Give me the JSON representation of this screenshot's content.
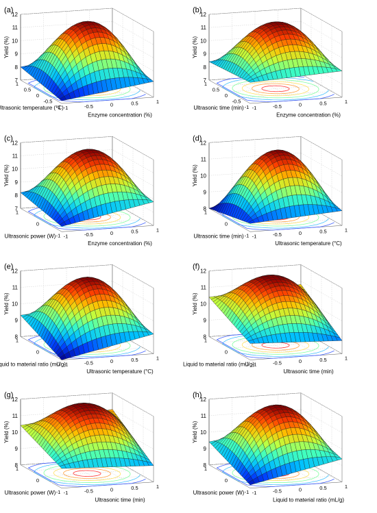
{
  "figure": {
    "colormap": [
      "#00008f",
      "#0040ff",
      "#00bfff",
      "#40ffbf",
      "#bfff40",
      "#ffbf00",
      "#ff4000",
      "#8f0000"
    ]
  },
  "chart_data": [
    {
      "type": "surface3d",
      "panel_label": "(a)",
      "zlabel": "Yield (%)",
      "zticks": [
        "7",
        "8",
        "9",
        "10",
        "11",
        "12"
      ],
      "xlabel": "Enzyme concentration (%)",
      "xticks": [
        "-1",
        "-0.5",
        "0",
        "0.5",
        "1"
      ],
      "ylabel": "Ultrasonic  temperature (°C)",
      "yticks": [
        "1",
        "0.5",
        "0",
        "-0.5",
        "-1"
      ],
      "xlim": [
        -1,
        1
      ],
      "ylim": [
        -1,
        1
      ],
      "zlim": [
        7,
        12
      ],
      "corner_values": {
        "near": 7.2,
        "left": 8.0,
        "right": 8.2,
        "back": 8.9
      },
      "peak": 12.0
    },
    {
      "type": "surface3d",
      "panel_label": "(b)",
      "zlabel": "Yield (%)",
      "zticks": [
        "7",
        "8",
        "9",
        "10",
        "11",
        "12"
      ],
      "xlabel": "Enzyme concentration (%)",
      "xticks": [
        "-1",
        "-0.5",
        "0",
        "0.5",
        "1"
      ],
      "ylabel": "Ultrasonic  time (min)",
      "yticks": [
        "1",
        "0.5",
        "0",
        "-0.5",
        "-1"
      ],
      "xlim": [
        -1,
        1
      ],
      "ylim": [
        -1,
        1
      ],
      "zlim": [
        7,
        12
      ],
      "corner_values": {
        "near": 8.6,
        "left": 8.4,
        "right": 9.0,
        "back": 9.4
      },
      "peak": 12.0
    },
    {
      "type": "surface3d",
      "panel_label": "(c)",
      "zlabel": "Yield (%)",
      "zticks": [
        "7",
        "8",
        "9",
        "10",
        "11",
        "12"
      ],
      "xlabel": "Enzyme concentration (%)",
      "xticks": [
        "-1",
        "-0.5",
        "0",
        "0.5",
        "1"
      ],
      "ylabel": "Ultrasonic power (W)",
      "yticks": [
        "1",
        "0",
        "-1"
      ],
      "xlim": [
        -1,
        1
      ],
      "ylim": [
        -1,
        1
      ],
      "zlim": [
        7,
        12
      ],
      "corner_values": {
        "near": 7.4,
        "left": 8.2,
        "right": 8.8,
        "back": 9.4
      },
      "peak": 12.0
    },
    {
      "type": "surface3d",
      "panel_label": "(d)",
      "zlabel": "Yield (%)",
      "zticks": [
        "8",
        "9",
        "10",
        "11",
        "12"
      ],
      "xlabel": "Ultrasonic temperature  (°C)",
      "xticks": [
        "-1",
        "-0.5",
        "0",
        "0.5",
        "1"
      ],
      "ylabel": "Ultrasonic time (min)",
      "yticks": [
        "1",
        "0",
        "-1"
      ],
      "xlim": [
        -1,
        1
      ],
      "ylim": [
        -1,
        1
      ],
      "zlim": [
        8,
        12
      ],
      "corner_values": {
        "near": 8.5,
        "left": 8.0,
        "right": 8.9,
        "back": 9.6
      },
      "peak": 12.0
    },
    {
      "type": "surface3d",
      "panel_label": "(e)",
      "zlabel": "Yield (%)",
      "zticks": [
        "8",
        "9",
        "10",
        "11",
        "12"
      ],
      "xlabel": "Ultrasonic temperature  (°C)",
      "xticks": [
        "-1",
        "-0.5",
        "0",
        "0.5",
        "1"
      ],
      "ylabel": "Liquid to material ratio (mL/g)",
      "yticks": [
        "1",
        "0",
        "-1"
      ],
      "xlim": [
        -1,
        1
      ],
      "ylim": [
        -1,
        1
      ],
      "zlim": [
        8,
        12
      ],
      "corner_values": {
        "near": 8.0,
        "left": 9.3,
        "right": 9.2,
        "back": 9.8
      },
      "peak": 12.0
    },
    {
      "type": "surface3d",
      "panel_label": "(f)",
      "zlabel": "Yield (%)",
      "zticks": [
        "8",
        "9",
        "10",
        "11",
        "12"
      ],
      "xlabel": "Ultrasonic time  (min)",
      "xticks": [
        "-1",
        "-0.5",
        "0",
        "0.5",
        "1"
      ],
      "ylabel": "Liquid to material ratio (mL/g)",
      "yticks": [
        "1",
        "0",
        "-1"
      ],
      "xlim": [
        -1,
        1
      ],
      "ylim": [
        -1,
        1
      ],
      "zlim": [
        8,
        12
      ],
      "corner_values": {
        "near": 9.0,
        "left": 10.4,
        "right": 8.8,
        "back": 10.8
      },
      "peak": 12.0
    },
    {
      "type": "surface3d",
      "panel_label": "(g)",
      "zlabel": "Yield (%)",
      "zticks": [
        "8",
        "9",
        "10",
        "11",
        "12"
      ],
      "xlabel": "Ultrasonic  time (min)",
      "xticks": [
        "-1",
        "-0.5",
        "0",
        "0.5",
        "1"
      ],
      "ylabel": "Ultrasonic power (W)",
      "yticks": [
        "1",
        "0",
        "-1"
      ],
      "xlim": [
        -1,
        1
      ],
      "ylim": [
        -1,
        1
      ],
      "zlim": [
        8,
        12
      ],
      "corner_values": {
        "near": 9.2,
        "left": 10.4,
        "right": 9.0,
        "back": 11.0
      },
      "peak": 12.0
    },
    {
      "type": "surface3d",
      "panel_label": "(h)",
      "zlabel": "Yield (%)",
      "zticks": [
        "8",
        "9",
        "10",
        "11",
        "12"
      ],
      "xlabel": "Liquid to material ratio (mL/g)",
      "xticks": [
        "-1",
        "-0.5",
        "0",
        "0.5",
        "1"
      ],
      "ylabel": "Ultrasonic power (W)",
      "yticks": [
        "1",
        "0",
        "-1"
      ],
      "xlim": [
        -1,
        1
      ],
      "ylim": [
        -1,
        1
      ],
      "zlim": [
        8,
        12
      ],
      "corner_values": {
        "near": 8.2,
        "left": 9.4,
        "right": 9.4,
        "back": 10.2
      },
      "peak": 12.0
    }
  ]
}
